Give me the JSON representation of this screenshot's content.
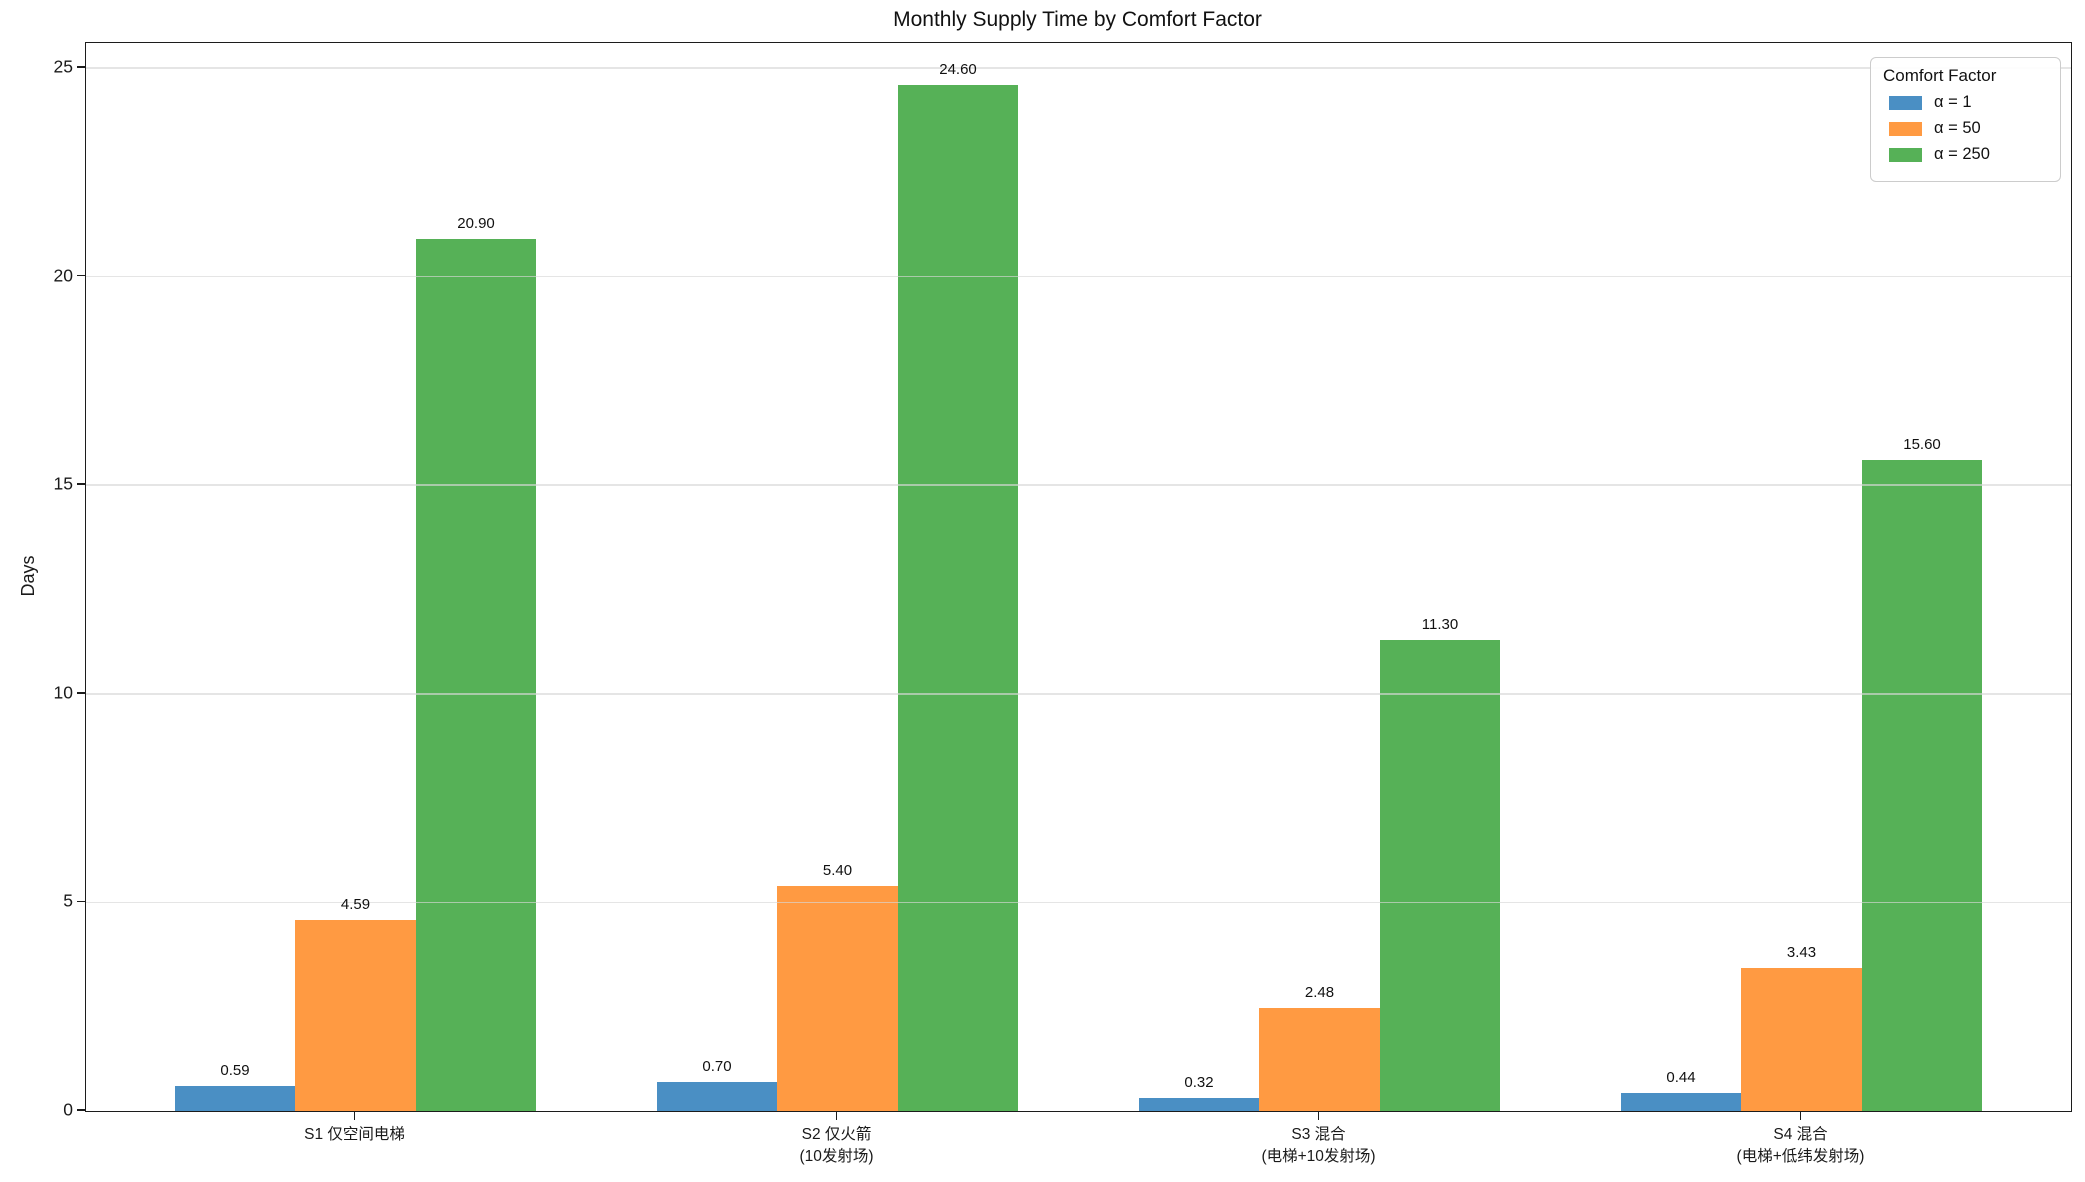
{
  "title": "Monthly Supply Time by Comfort Factor",
  "ylabel": "Days",
  "legend": {
    "title": "Comfort Factor",
    "items": [
      {
        "label": "α = 1",
        "color": "#4a8fc4"
      },
      {
        "label": "α = 50",
        "color": "#ff9a42"
      },
      {
        "label": "α = 250",
        "color": "#56b157"
      }
    ]
  },
  "chart_data": {
    "type": "bar",
    "title": "Monthly Supply Time by Comfort Factor",
    "xlabel": "",
    "ylabel": "Days",
    "ylim": [
      0,
      25.6
    ],
    "yticks": [
      0,
      5,
      10,
      15,
      20,
      25
    ],
    "grid": true,
    "grid_axis": "y",
    "legend_title": "Comfort Factor",
    "legend_position": "upper right",
    "bar_width_units": 0.25,
    "bar_label_format": "0.00",
    "categories": [
      "S1 仅空间电梯",
      "S2 仅火箭\n(10发射场)",
      "S3 混合\n(电梯+10发射场)",
      "S4 混合\n(电梯+低纬发射场)"
    ],
    "series": [
      {
        "name": "α = 1",
        "color": "#4a8fc4",
        "values": [
          0.59,
          0.7,
          0.32,
          0.44
        ]
      },
      {
        "name": "α = 50",
        "color": "#ff9a42",
        "values": [
          4.59,
          5.4,
          2.48,
          3.43
        ]
      },
      {
        "name": "α = 250",
        "color": "#56b157",
        "values": [
          20.9,
          24.6,
          11.3,
          15.6
        ]
      }
    ]
  }
}
